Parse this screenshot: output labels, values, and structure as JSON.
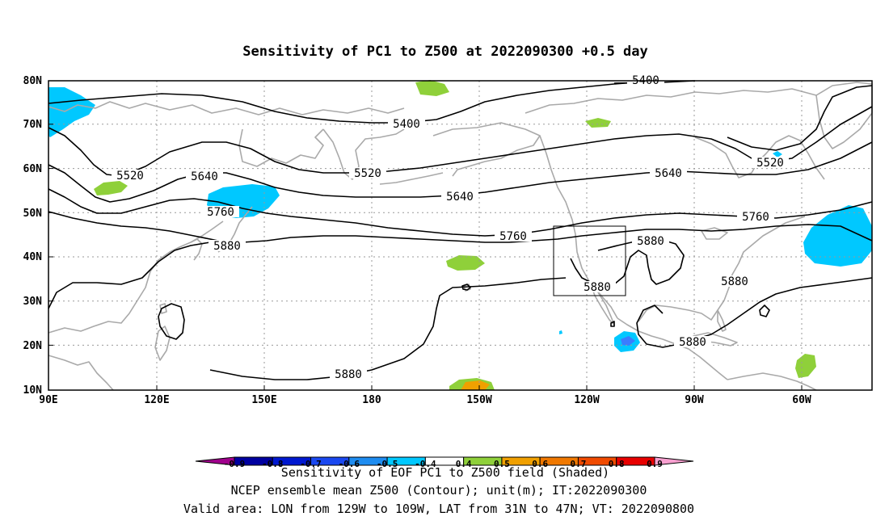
{
  "title": "Sensitivity of PC1 to Z500 at 2022090300 +0.5 day",
  "map": {
    "lat_labels": [
      "80N",
      "70N",
      "60N",
      "50N",
      "40N",
      "30N",
      "20N",
      "10N"
    ],
    "lon_labels": [
      "90E",
      "120E",
      "150E",
      "180",
      "150W",
      "120W",
      "90W",
      "60W"
    ],
    "contour_labels": {
      "c5400a": "5400",
      "c5400b": "5400",
      "c5520a": "5520",
      "c5520b": "5520",
      "c5520c": "5520",
      "c5640a": "5640",
      "c5640b": "5640",
      "c5640c": "5640",
      "c5760a": "5760",
      "c5760b": "5760",
      "c5760c": "5760",
      "c5880a": "5880",
      "c5880b": "5880",
      "c5880c": "5880",
      "c5880d": "5880",
      "c5880e": "5880",
      "c5880f": "5880"
    },
    "colors": {
      "cyan": "#00c8ff",
      "green": "#8fd03a",
      "orange": "#f0a000",
      "blue": "#3a7dff",
      "coast": "#a9a9a9",
      "contour": "#000000"
    }
  },
  "colorbar": {
    "labels": [
      "-0.9",
      "-0.8",
      "-0.7",
      "-0.6",
      "-0.5",
      "-0.4",
      "0.4",
      "0.5",
      "0.6",
      "0.7",
      "0.8",
      "0.9"
    ],
    "colors": [
      "#a0008c",
      "#0000a0",
      "#0018d0",
      "#1a48f0",
      "#1e8cf0",
      "#00c8ff",
      "#ffffff",
      "#8fd03a",
      "#f0a000",
      "#f07800",
      "#f04a00",
      "#e80000",
      "#f8a0d0"
    ]
  },
  "footer": {
    "line1": "Sensitivity of EOF PC1 to Z500 field (Shaded)",
    "line2": "NCEP ensemble mean Z500 (Contour); unit(m); IT:2022090300",
    "line3": "Valid area: LON from 129W to 109W, LAT from 31N to 47N; VT: 2022090800"
  }
}
